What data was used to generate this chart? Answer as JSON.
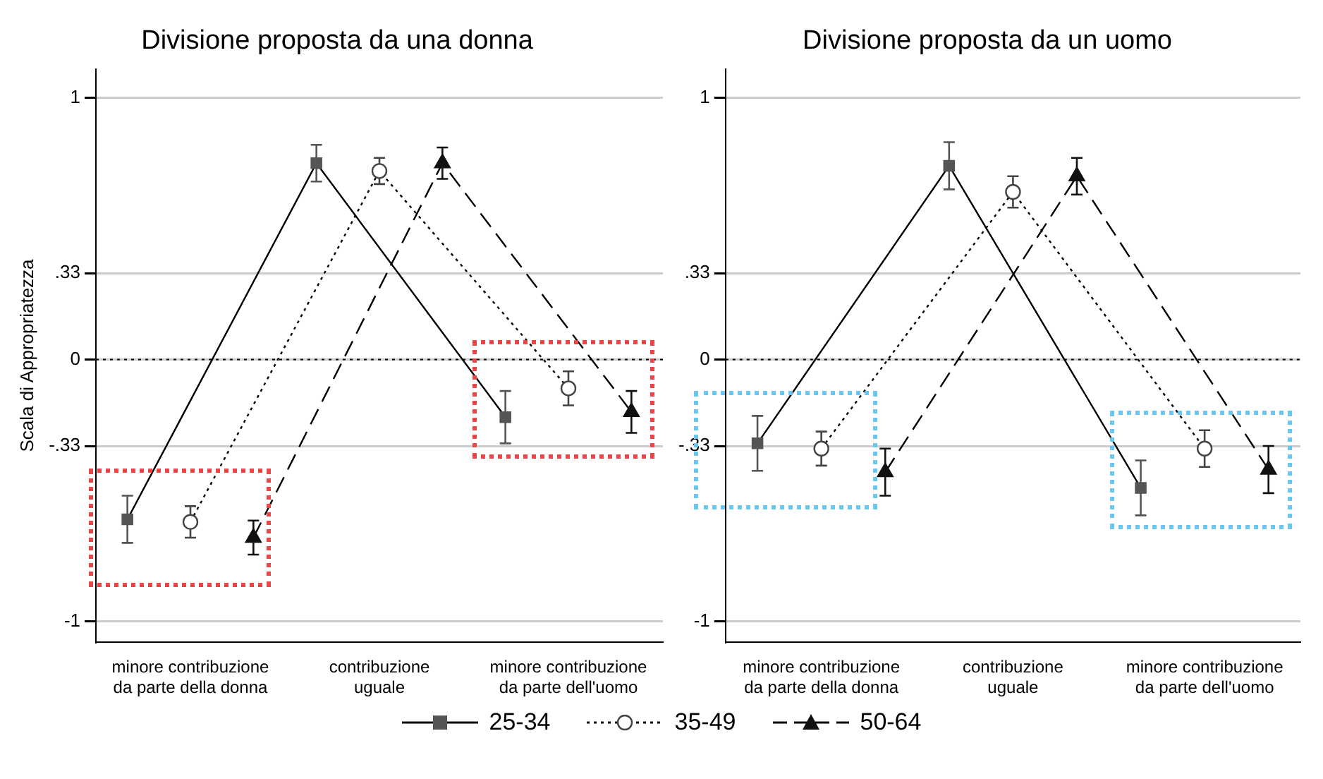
{
  "chart_data": [
    {
      "type": "line",
      "title": "Divisione proposta da una donna",
      "ylabel": "Scala di Appropriatezza",
      "categories": [
        null,
        "minore contribuzione\nda parte della donna",
        null,
        null,
        "contribuzione\nuguale",
        null,
        null,
        "minore contribuzione\nda parte dell'uomo",
        null
      ],
      "series": [
        {
          "name": "25-34",
          "color": "#555555",
          "marker": "square",
          "line_style": "solid",
          "values": [
            -0.61,
            null,
            null,
            0.75,
            null,
            null,
            -0.22,
            null,
            null
          ],
          "errors": [
            0.09,
            null,
            null,
            0.07,
            null,
            null,
            0.1,
            null,
            null
          ]
        },
        {
          "name": "35-49",
          "color": "#444444",
          "marker": "circle",
          "line_style": "dotted",
          "values": [
            null,
            -0.62,
            null,
            null,
            0.72,
            null,
            null,
            -0.11,
            null
          ],
          "errors": [
            null,
            0.06,
            null,
            null,
            0.05,
            null,
            null,
            0.065,
            null
          ]
        },
        {
          "name": "50-64",
          "color": "#111111",
          "marker": "triangle",
          "line_style": "dashed",
          "values": [
            null,
            null,
            -0.68,
            null,
            null,
            0.75,
            null,
            null,
            -0.2
          ],
          "errors": [
            null,
            null,
            0.065,
            null,
            null,
            0.06,
            null,
            null,
            0.08
          ]
        }
      ],
      "ylim": [
        -1.08,
        1.11
      ],
      "yticks": [
        {
          "value": -1,
          "label": "-1"
        },
        {
          "value": -0.33,
          "label": "-.33"
        },
        {
          "value": 0,
          "label": "0"
        },
        {
          "value": 0.33,
          "label": ".33"
        },
        {
          "value": 1,
          "label": "1"
        }
      ],
      "grid": "y",
      "legend": "bottom",
      "ref_lines": [
        {
          "axis": "y",
          "value": 0,
          "line_style": "dotted",
          "color": "#000000"
        }
      ]
    },
    {
      "type": "line",
      "title": "Divisione proposta da un uomo",
      "categories": [
        null,
        "minore contribuzione\nda parte della donna",
        null,
        null,
        "contribuzione\nuguale",
        null,
        null,
        "minore contribuzione\nda parte dell'uomo",
        null
      ],
      "series": [
        {
          "name": "25-34",
          "color": "#555555",
          "marker": "square",
          "line_style": "solid",
          "values": [
            -0.32,
            null,
            null,
            0.74,
            null,
            null,
            -0.49,
            null,
            null
          ],
          "errors": [
            0.105,
            null,
            null,
            0.09,
            null,
            null,
            0.105,
            null,
            null
          ]
        },
        {
          "name": "35-49",
          "color": "#444444",
          "marker": "circle",
          "line_style": "dotted",
          "values": [
            null,
            -0.34,
            null,
            null,
            0.64,
            null,
            null,
            -0.34,
            null
          ],
          "errors": [
            null,
            0.065,
            null,
            null,
            0.06,
            null,
            null,
            0.07,
            null
          ]
        },
        {
          "name": "50-64",
          "color": "#111111",
          "marker": "triangle",
          "line_style": "dashed",
          "values": [
            null,
            null,
            -0.43,
            null,
            null,
            0.7,
            null,
            null,
            -0.42
          ],
          "errors": [
            null,
            null,
            0.09,
            null,
            null,
            0.07,
            null,
            null,
            0.09
          ]
        }
      ],
      "ylim": [
        -1.08,
        1.11
      ],
      "yticks": [
        {
          "value": -1,
          "label": "-1"
        },
        {
          "value": -0.33,
          "label": "-.33"
        },
        {
          "value": 0,
          "label": "0"
        },
        {
          "value": 0.33,
          "label": ".33"
        },
        {
          "value": 1,
          "label": "1"
        }
      ],
      "grid": "y",
      "legend": "bottom",
      "ref_lines": [
        {
          "axis": "y",
          "value": 0,
          "line_style": "dotted",
          "color": "#000000"
        }
      ]
    }
  ]
}
